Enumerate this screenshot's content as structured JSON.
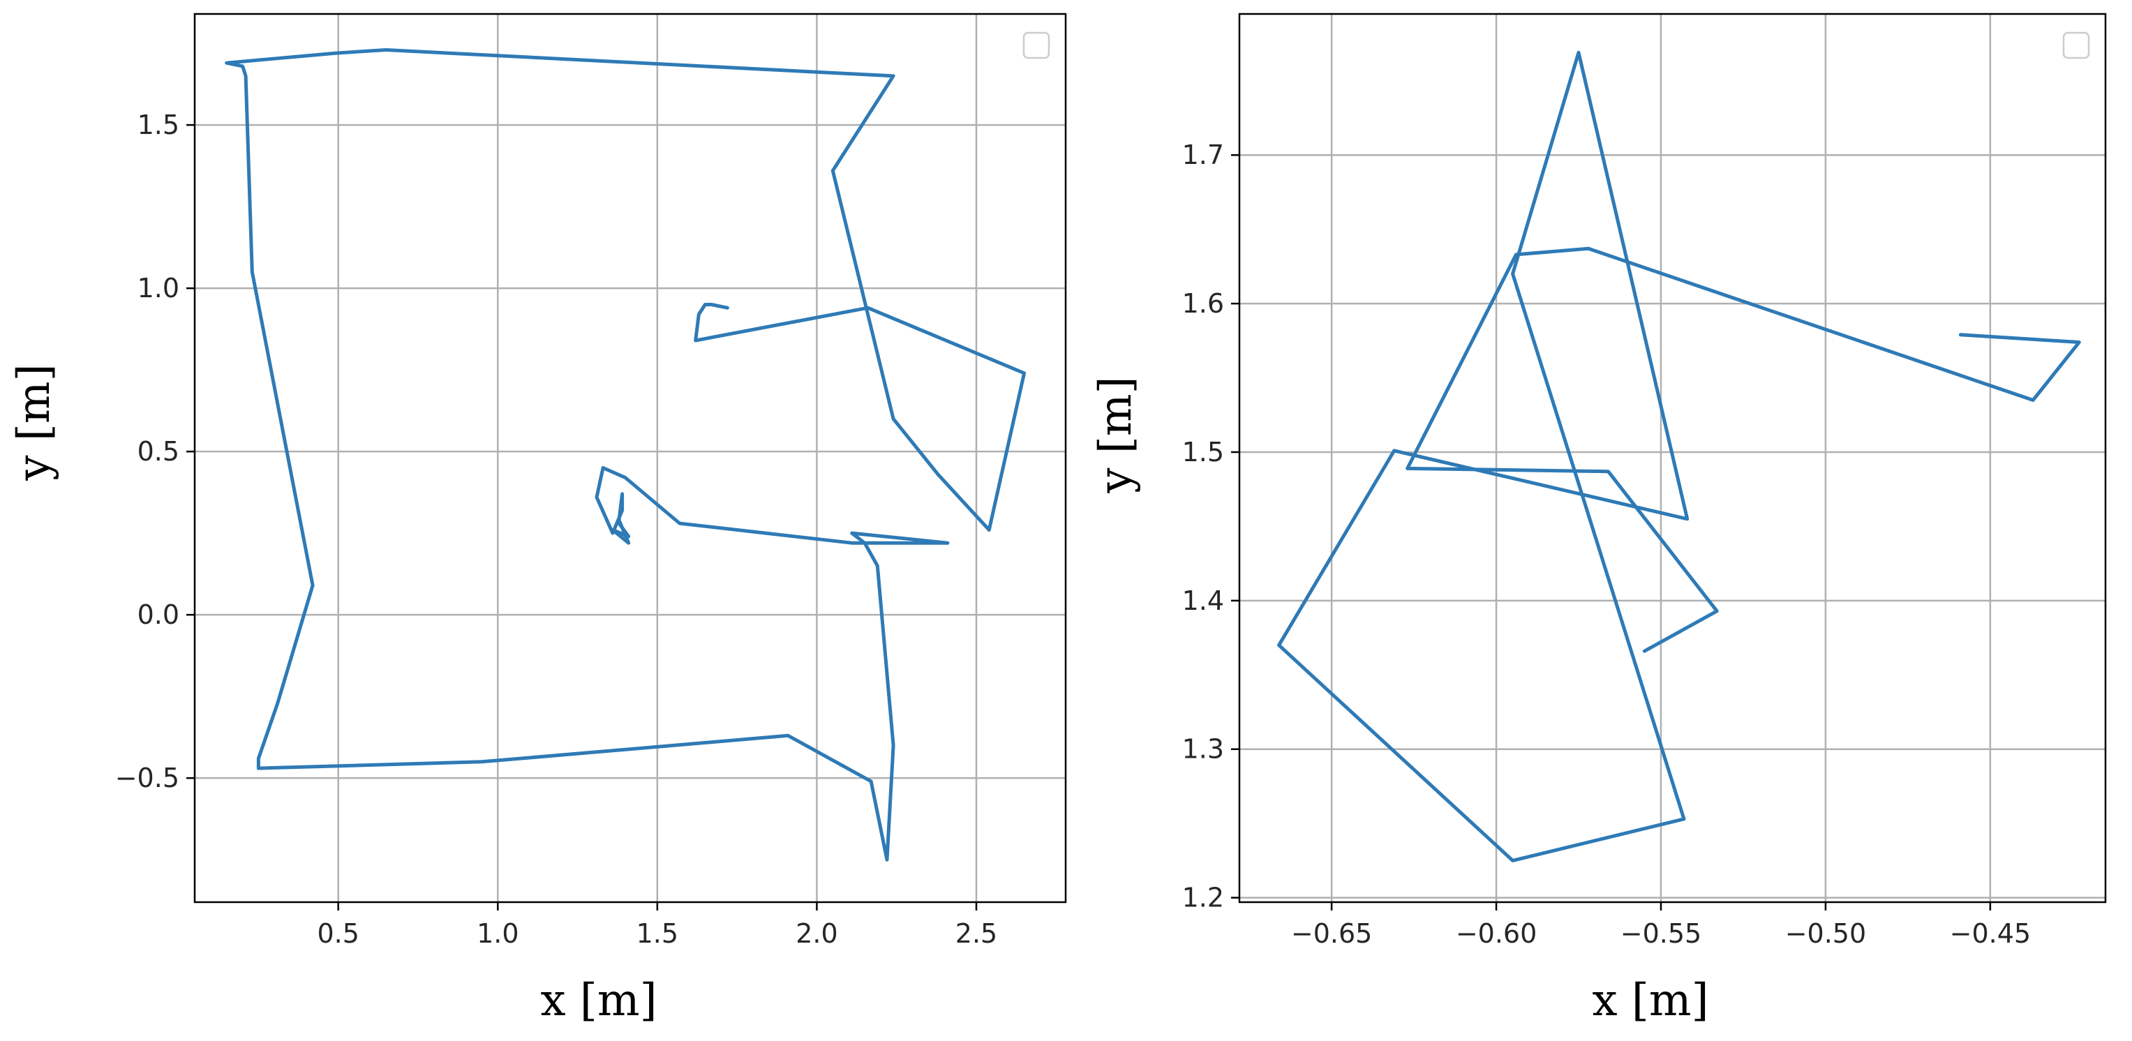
{
  "chart_data": [
    {
      "type": "line",
      "title": "",
      "xlabel": "x [m]",
      "ylabel": "y [m]",
      "xlim": [
        0.05,
        2.78
      ],
      "ylim": [
        -0.88,
        1.84
      ],
      "xticks": [
        0.5,
        1.0,
        1.5,
        2.0,
        2.5
      ],
      "xtick_labels": [
        "0.5",
        "1.0",
        "1.5",
        "2.0",
        "2.5"
      ],
      "yticks": [
        -0.5,
        0.0,
        0.5,
        1.0,
        1.5
      ],
      "ytick_labels": [
        "−0.5",
        "0.0",
        "0.5",
        "1.0",
        "1.5"
      ],
      "grid": true,
      "legend": "upper right (empty)",
      "line_color": "#2e7ab6",
      "series": [
        {
          "x": [
            1.72,
            1.67,
            1.65,
            1.63,
            1.62,
            2.16,
            2.65,
            2.54,
            2.38,
            2.24,
            2.05,
            2.24,
            0.65,
            0.49,
            0.15,
            0.2,
            0.21,
            0.23,
            0.42,
            0.31,
            0.25,
            0.25,
            0.95,
            1.91,
            2.17,
            2.22,
            2.24,
            2.19,
            2.15,
            2.11,
            2.41,
            2.11,
            1.57,
            1.4,
            1.33,
            1.31,
            1.36,
            1.39,
            1.39,
            1.38,
            1.41,
            1.36,
            1.41,
            1.38
          ],
          "y": [
            0.94,
            0.95,
            0.95,
            0.92,
            0.84,
            0.94,
            0.74,
            0.26,
            0.43,
            0.6,
            1.36,
            1.65,
            1.73,
            1.72,
            1.69,
            1.68,
            1.65,
            1.05,
            0.09,
            -0.27,
            -0.44,
            -0.47,
            -0.45,
            -0.37,
            -0.51,
            -0.75,
            -0.4,
            0.15,
            0.22,
            0.25,
            0.22,
            0.22,
            0.28,
            0.42,
            0.45,
            0.36,
            0.25,
            0.32,
            0.37,
            0.29,
            0.22,
            0.26,
            0.24,
            0.28
          ]
        }
      ]
    },
    {
      "type": "line",
      "title": "",
      "xlabel": "x [m]",
      "ylabel": "y [m]",
      "xlim": [
        -0.678,
        -0.415
      ],
      "ylim": [
        1.197,
        1.795
      ],
      "xticks": [
        -0.65,
        -0.6,
        -0.55,
        -0.5,
        -0.45
      ],
      "xtick_labels": [
        "−0.65",
        "−0.60",
        "−0.55",
        "−0.50",
        "−0.45"
      ],
      "yticks": [
        1.2,
        1.3,
        1.4,
        1.5,
        1.6,
        1.7
      ],
      "ytick_labels": [
        "1.2",
        "1.3",
        "1.4",
        "1.5",
        "1.6",
        "1.7"
      ],
      "grid": true,
      "legend": "upper right (empty)",
      "line_color": "#2e7ab6",
      "series": [
        {
          "x": [
            -0.459,
            -0.423,
            -0.437,
            -0.572,
            -0.594,
            -0.627,
            -0.566,
            -0.533,
            -0.555
          ],
          "y": [
            1.579,
            1.574,
            1.535,
            1.637,
            1.633,
            1.489,
            1.487,
            1.393,
            1.366
          ],
          "x2": [
            -0.631,
            -0.542,
            -0.575,
            -0.595,
            -0.543,
            -0.595,
            -0.666,
            -0.631
          ],
          "y2": [
            1.501,
            1.455,
            1.769,
            1.62,
            1.253,
            1.225,
            1.37,
            1.501
          ]
        }
      ]
    }
  ]
}
